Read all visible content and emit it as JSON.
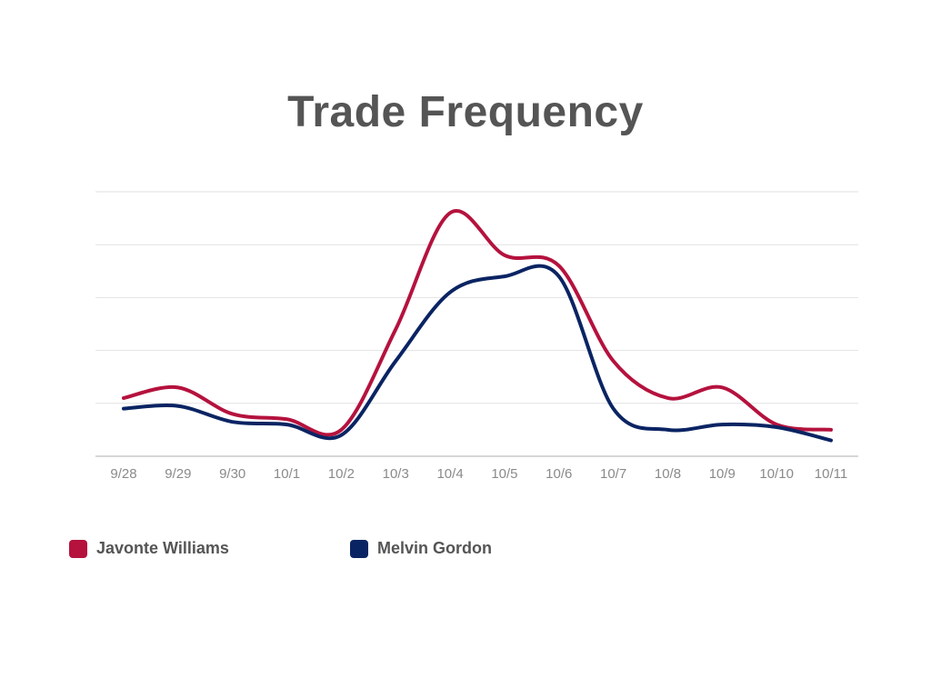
{
  "chart_data": {
    "type": "line",
    "title": "Trade Frequency",
    "xlabel": "",
    "ylabel": "",
    "categories": [
      "9/28",
      "9/29",
      "9/30",
      "10/1",
      "10/2",
      "10/3",
      "10/4",
      "10/5",
      "10/6",
      "10/7",
      "10/8",
      "10/9",
      "10/10",
      "10/11"
    ],
    "ylim": [
      0,
      50
    ],
    "grid": true,
    "y_tick_labels_shown": false,
    "legend_position": "bottom-left",
    "series": [
      {
        "name": "Javonte Williams",
        "color": "#B5123E",
        "values": [
          11,
          13,
          8,
          7,
          5,
          24,
          46,
          38,
          36,
          18,
          11,
          13,
          6,
          5
        ]
      },
      {
        "name": "Melvin Gordon",
        "color": "#0A2463",
        "values": [
          9,
          9.5,
          6.5,
          6,
          4,
          18,
          31,
          34,
          34,
          9,
          5,
          6,
          5.5,
          3
        ]
      }
    ],
    "colors": {
      "grid": "#E2E2E2",
      "axis": "#BFBFBF",
      "tick_text": "#8A8A8A",
      "title": "#555555"
    }
  }
}
